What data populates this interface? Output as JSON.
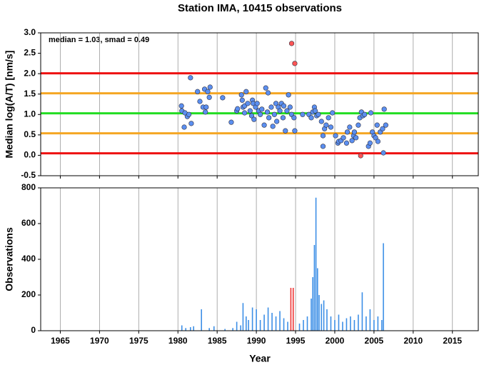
{
  "chart_data": [
    {
      "type": "scatter",
      "title": "Station IMA, 10415 observations",
      "ylabel": "Median log(A/T) [nm/s]",
      "annotation": "median = 1.03, smad = 0.49",
      "xlim": [
        1962.5,
        2018.3
      ],
      "xticks": [
        1965,
        1970,
        1975,
        1980,
        1985,
        1990,
        1995,
        2000,
        2005,
        2010,
        2015
      ],
      "ylim": [
        -0.5,
        3.0
      ],
      "yticks": [
        {
          "value": 3,
          "label": "3.0"
        },
        2.5,
        {
          "value": 2,
          "label": "2.0"
        },
        1.5,
        {
          "value": 1,
          "label": "1.0"
        },
        0.5,
        {
          "value": 0,
          "label": "0.0"
        },
        -0.5
      ],
      "grid": "x",
      "hlines": [
        {
          "value": 2.01,
          "color": "#ee1111"
        },
        {
          "value": 1.52,
          "color": "#f5a623"
        },
        {
          "value": 1.03,
          "color": "#22dd22"
        },
        {
          "value": 0.54,
          "color": "#f5a623"
        },
        {
          "value": 0.05,
          "color": "#ee1111"
        }
      ],
      "series": [
        {
          "color": "#5b8ff0",
          "x": [
            1980.45,
            1980.5,
            1980.8,
            1980.9,
            1981.2,
            1981.4,
            1981.6,
            1981.7,
            1982.5,
            1982.8,
            1983.2,
            1983.4,
            1983.5,
            1983.6,
            1983.8,
            1984.0,
            1984.1,
            1985.7,
            1986.8,
            1987.5,
            1987.6,
            1988.1,
            1988.2,
            1988.3,
            1988.5,
            1988.5,
            1988.7,
            1988.9,
            1989.2,
            1989.4,
            1989.5,
            1989.6,
            1989.7,
            1989.9,
            1990.1,
            1990.3,
            1990.5,
            1990.7,
            1991.0,
            1991.2,
            1991.4,
            1991.5,
            1991.6,
            1991.9,
            1992.1,
            1992.3,
            1992.5,
            1992.6,
            1992.8,
            1993.0,
            1993.2,
            1993.4,
            1993.5,
            1993.7,
            1993.9,
            1994.1,
            1994.3,
            1994.5,
            1994.8,
            1994.9,
            1995.9,
            1996.7,
            1997.0,
            1997.2,
            1997.4,
            1997.5,
            1997.7,
            1997.9,
            1998.3,
            1998.5,
            1998.5,
            1998.7,
            1998.9,
            1999.2,
            1999.5,
            1999.7,
            2000.1,
            2000.4,
            2000.5,
            2000.8,
            2001.1,
            2001.5,
            2001.6,
            2001.9,
            2002.2,
            2002.4,
            2002.5,
            2002.7,
            2003.0,
            2003.2,
            2003.4,
            2003.6,
            2003.8,
            2004.3,
            2004.5,
            2004.6,
            2004.8,
            2005.0,
            2005.2,
            2005.4,
            2005.5,
            2005.8,
            2006.1,
            2006.2,
            2006.3,
            2006.5
          ],
          "values": [
            1.21,
            1.09,
            0.69,
            1.04,
            0.95,
            1.0,
            1.9,
            0.78,
            1.56,
            1.32,
            1.18,
            1.62,
            1.06,
            1.18,
            1.56,
            1.42,
            1.67,
            1.41,
            0.81,
            1.09,
            1.14,
            1.48,
            1.35,
            1.18,
            1.21,
            1.04,
            1.56,
            1.27,
            1.09,
            0.97,
            1.35,
            1.27,
            0.88,
            1.18,
            1.27,
            1.09,
            1.0,
            1.13,
            0.74,
            1.65,
            1.06,
            1.53,
            0.92,
            1.18,
            0.71,
            1.0,
            1.27,
            0.83,
            1.18,
            1.09,
            1.27,
            0.92,
            1.21,
            0.6,
            1.09,
            1.48,
            1.18,
            1.0,
            0.92,
            0.6,
            1.0,
            1.0,
            0.92,
            1.06,
            1.18,
            1.09,
            0.97,
            1.0,
            0.83,
            0.48,
            0.22,
            0.65,
            0.74,
            0.92,
            0.69,
            1.04,
            0.48,
            0.3,
            0.34,
            0.36,
            0.43,
            0.3,
            0.57,
            0.69,
            0.36,
            0.48,
            0.57,
            0.43,
            0.74,
            0.92,
            1.06,
            0.97,
            1.0,
            0.22,
            0.3,
            1.04,
            0.57,
            0.48,
            0.43,
            0.74,
            0.34,
            0.57,
            0.65,
            0.06,
            1.13,
            0.74
          ]
        },
        {
          "color": "#ff5555",
          "x": [
            1994.5,
            1994.9,
            2003.3
          ],
          "values": [
            2.74,
            2.25,
            -0.01
          ]
        }
      ]
    },
    {
      "type": "bar",
      "ylabel": "Observations",
      "xlabel": "Year",
      "xlim": [
        1962.5,
        2018.3
      ],
      "xticks": [
        1965,
        1970,
        1975,
        1980,
        1985,
        1990,
        1995,
        2000,
        2005,
        2010,
        2015
      ],
      "ylim": [
        0,
        800
      ],
      "yticks": [
        0,
        200,
        400,
        600,
        800
      ],
      "grid": "x",
      "series": [
        {
          "color": "#3d8fe6",
          "x": [
            1980.5,
            1981,
            1981.6,
            1982,
            1983,
            1984,
            1984.6,
            1986,
            1987,
            1987.5,
            1988,
            1988.3,
            1988.7,
            1989,
            1989.5,
            1990,
            1990.5,
            1991,
            1991.5,
            1992,
            1992.5,
            1993,
            1993.5,
            1994,
            1995.5,
            1996,
            1996.5,
            1997,
            1997.2,
            1997.4,
            1997.6,
            1997.8,
            1998,
            1998.3,
            1998.6,
            1999,
            1999.5,
            2000,
            2000.5,
            2001,
            2001.5,
            2002,
            2002.5,
            2003,
            2003.5,
            2004,
            2004.5,
            2005,
            2005.5,
            2006,
            2006.2
          ],
          "values": [
            30,
            15,
            20,
            25,
            120,
            15,
            25,
            10,
            15,
            50,
            30,
            155,
            80,
            60,
            130,
            120,
            60,
            90,
            130,
            100,
            80,
            110,
            70,
            50,
            40,
            60,
            80,
            180,
            300,
            480,
            745,
            350,
            200,
            150,
            170,
            120,
            80,
            60,
            90,
            50,
            70,
            80,
            60,
            90,
            215,
            80,
            120,
            60,
            80,
            60,
            490
          ]
        },
        {
          "color": "#ee3333",
          "x": [
            1994.4,
            1994.7
          ],
          "values": [
            240,
            240
          ]
        }
      ]
    }
  ]
}
